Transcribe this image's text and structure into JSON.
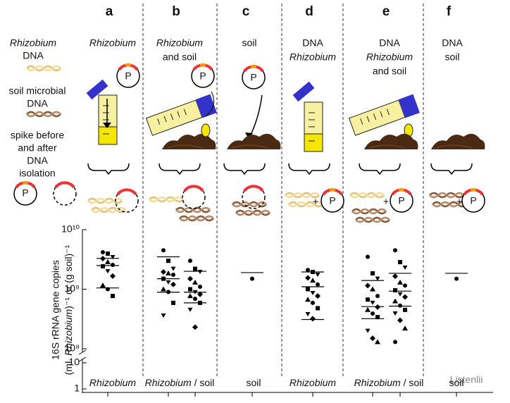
{
  "panels": [
    {
      "letter": "a",
      "title": [
        {
          "text": "Rhizobium",
          "italic": true
        }
      ]
    },
    {
      "letter": "b",
      "title": [
        {
          "text": "Rhizobium",
          "italic": true
        },
        {
          "text": "and soil"
        }
      ]
    },
    {
      "letter": "c",
      "title": [
        {
          "text": "soil"
        }
      ]
    },
    {
      "letter": "d",
      "title": [
        {
          "text": "DNA"
        },
        {
          "text": "Rhizobium",
          "italic": true
        }
      ]
    },
    {
      "letter": "e",
      "title": [
        {
          "text": "DNA"
        },
        {
          "text": "Rhizobium",
          "italic": true
        },
        {
          "text": "and soil"
        }
      ]
    },
    {
      "letter": "f",
      "title": [
        {
          "text": "DNA"
        },
        {
          "text": "soil"
        }
      ]
    }
  ],
  "legend": {
    "rhizobium_dna": [
      {
        "text": "Rhizobium",
        "italic": true
      },
      {
        "text": "DNA"
      }
    ],
    "soil_dna": [
      "soil microbial",
      "DNA"
    ],
    "spike": [
      "spike before",
      "and after",
      "DNA",
      "isolation"
    ]
  },
  "plasmid_label": "P",
  "plus": "+",
  "watermark": "Listenlii",
  "chart_data": {
    "type": "strip",
    "log_scale": true,
    "ylabel": {
      "line1": "16S rRNA gene copies",
      "line2_a": "(mL ",
      "line2_b": "Rhizobium",
      "line2_c": ")⁻¹ or (g soil)⁻¹"
    },
    "ylim": [
      100000000,
      10000000000
    ],
    "yticks": [
      {
        "value": 100000000,
        "label": "10⁸"
      },
      {
        "value": 1000000000,
        "label": "10⁹"
      },
      {
        "value": 10000000000,
        "label": "10¹⁰"
      }
    ],
    "ylim_lower": [
      1,
      10
    ],
    "yticks_lower": [
      1,
      10
    ],
    "groups": [
      {
        "italic": "Rhizobium"
      },
      {
        "italic": "Rhizobium",
        "plain": "/ soil"
      },
      {
        "plain": "soil"
      },
      {
        "italic": "Rhizobium"
      },
      {
        "italic": "Rhizobium",
        "plain": "/ soil"
      },
      {
        "plain": "soil"
      }
    ],
    "series": [
      {
        "group": 0,
        "color": "#000000",
        "values": [
          4180000000,
          3960000000,
          3450000000,
          3270000000,
          2860000000,
          2560000000,
          2430000000,
          2000000000,
          1660000000,
          1160000000,
          1000000000,
          770000000
        ],
        "lines": [
          3300000000,
          2500000000,
          1050000000
        ]
      },
      {
        "group": 1,
        "color": "#000000",
        "values": [
          4500000000,
          3000000000,
          2200000000,
          1950000000,
          1850000000,
          1750000000,
          1500000000,
          1300000000,
          1200000000,
          1000000000,
          900000000,
          590000000,
          360000000
        ],
        "lines": [
          3500000000,
          1500000000,
          890000000
        ]
      },
      {
        "group": 1,
        "color": "#000000",
        "values": [
          3000000000,
          2200000000,
          1950000000,
          1500000000,
          1300000000,
          1100000000,
          1000000000,
          890000000,
          820000000,
          770000000,
          690000000,
          590000000,
          450000000,
          230000000
        ],
        "lines": [
          2000000000,
          890000000,
          590000000
        ]
      },
      {
        "group": 2,
        "color": "#000000",
        "values": [
          1500000000
        ],
        "lines": [
          1900000000
        ]
      },
      {
        "group": 3,
        "color": "#000000",
        "values": [
          2100000000,
          1950000000,
          1750000000,
          1550000000,
          1400000000,
          1200000000,
          1000000000,
          860000000,
          770000000,
          670000000,
          590000000,
          480000000,
          380000000,
          320000000
        ],
        "lines": [
          1950000000,
          1100000000,
          310000000
        ]
      },
      {
        "group": 4,
        "color": "#000000",
        "values": [
          3500000000,
          1850000000,
          1500000000,
          1150000000,
          1000000000,
          770000000,
          670000000,
          590000000,
          500000000,
          450000000,
          390000000,
          340000000,
          200000000,
          150000000,
          130000000
        ],
        "lines": [
          1400000000,
          510000000,
          320000000
        ]
      },
      {
        "group": 4,
        "color": "#000000",
        "values": [
          4500000000,
          2850000000,
          2300000000,
          1650000000,
          1300000000,
          1150000000,
          960000000,
          820000000,
          740000000,
          630000000,
          530000000,
          450000000,
          390000000,
          300000000,
          220000000,
          130000000
        ],
        "lines": [
          1850000000,
          930000000,
          520000000
        ]
      },
      {
        "group": 5,
        "color": "#000000",
        "values": [
          1500000000
        ],
        "lines": [
          1850000000
        ]
      }
    ]
  }
}
